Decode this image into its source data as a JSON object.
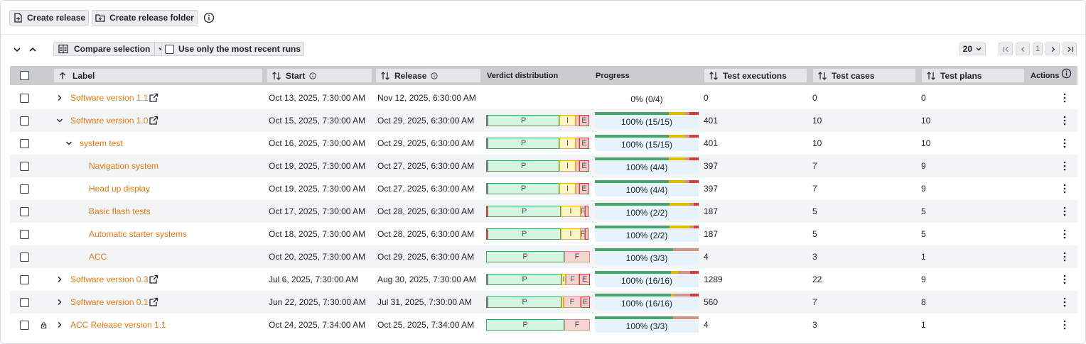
{
  "toolbar": {
    "create_release": "Create release",
    "create_release_folder": "Create release folder"
  },
  "toolbar2": {
    "compare_selection": "Compare selection",
    "most_recent_runs": "Use only the most recent runs",
    "page_size": "20",
    "current_page": "1"
  },
  "columns": {
    "label": "Label",
    "start": "Start",
    "release": "Release",
    "verdict": "Verdict distribution",
    "progress": "Progress",
    "test_executions": "Test executions",
    "test_cases": "Test cases",
    "test_plans": "Test plans",
    "actions": "Actions"
  },
  "colors": {
    "label_link": "#e07b1a",
    "passed": "#49a56d",
    "inconclusive": "#e8b800",
    "failed": "#d88f86",
    "error": "#d43a36",
    "header_bg": "#c9cdd0"
  },
  "rows": [
    {
      "label": "Software version 1.1",
      "indent": 0,
      "expander": "right",
      "external": true,
      "lock": false,
      "start": "Oct 13, 2025, 7:30:00 AM",
      "release": "Nov 12, 2025, 6:30:00 AM",
      "verdict": [],
      "progress": "0% (0/4)",
      "progress_bar": [],
      "test_executions": "0",
      "test_cases": "0",
      "test_plans": "0"
    },
    {
      "label": "Software version 1.0",
      "indent": 0,
      "expander": "down",
      "external": true,
      "lock": false,
      "start": "Oct 15, 2025, 7:30:00 AM",
      "release": "Oct 29, 2025, 6:30:00 AM",
      "verdict": [
        {
          "k": "X",
          "w": 2,
          "t": ""
        },
        {
          "k": "P",
          "w": 101,
          "t": "P"
        },
        {
          "k": "I",
          "w": 23,
          "t": "I"
        },
        {
          "k": "F",
          "w": 5,
          "t": ""
        },
        {
          "k": "E",
          "w": 14,
          "t": "E"
        }
      ],
      "progress": "100% (15/15)",
      "progress_bar": [
        {
          "c": "#49a56d",
          "w": 0.71
        },
        {
          "c": "#e8b800",
          "w": 0.16
        },
        {
          "c": "#d88f86",
          "w": 0.04
        },
        {
          "c": "#d43a36",
          "w": 0.09
        }
      ],
      "test_executions": "401",
      "test_cases": "10",
      "test_plans": "10"
    },
    {
      "label": "system test",
      "indent": 1,
      "expander": "down",
      "external": false,
      "lock": false,
      "start": "Oct 16, 2025, 7:30:00 AM",
      "release": "Oct 29, 2025, 6:30:00 AM",
      "verdict": [
        {
          "k": "X",
          "w": 2,
          "t": ""
        },
        {
          "k": "P",
          "w": 101,
          "t": "P"
        },
        {
          "k": "I",
          "w": 23,
          "t": "I"
        },
        {
          "k": "F",
          "w": 5,
          "t": ""
        },
        {
          "k": "E",
          "w": 14,
          "t": "E"
        }
      ],
      "progress": "100% (15/15)",
      "progress_bar": [
        {
          "c": "#49a56d",
          "w": 0.71
        },
        {
          "c": "#e8b800",
          "w": 0.16
        },
        {
          "c": "#d88f86",
          "w": 0.04
        },
        {
          "c": "#d43a36",
          "w": 0.09
        }
      ],
      "test_executions": "401",
      "test_cases": "10",
      "test_plans": "10"
    },
    {
      "label": "Navigation system",
      "indent": 2,
      "expander": "",
      "external": false,
      "lock": false,
      "start": "Oct 19, 2025, 7:30:00 AM",
      "release": "Oct 27, 2025, 6:30:00 AM",
      "verdict": [
        {
          "k": "X",
          "w": 2,
          "t": ""
        },
        {
          "k": "P",
          "w": 101,
          "t": "P"
        },
        {
          "k": "I",
          "w": 23,
          "t": "I"
        },
        {
          "k": "F",
          "w": 5,
          "t": ""
        },
        {
          "k": "E",
          "w": 14,
          "t": "E"
        }
      ],
      "progress": "100% (4/4)",
      "progress_bar": [
        {
          "c": "#49a56d",
          "w": 0.71
        },
        {
          "c": "#e8b800",
          "w": 0.16
        },
        {
          "c": "#d88f86",
          "w": 0.04
        },
        {
          "c": "#d43a36",
          "w": 0.09
        }
      ],
      "test_executions": "397",
      "test_cases": "7",
      "test_plans": "9"
    },
    {
      "label": "Head up display",
      "indent": 2,
      "expander": "",
      "external": false,
      "lock": false,
      "start": "Oct 19, 2025, 7:30:00 AM",
      "release": "Oct 27, 2025, 6:30:00 AM",
      "verdict": [
        {
          "k": "X",
          "w": 2,
          "t": ""
        },
        {
          "k": "P",
          "w": 101,
          "t": "P"
        },
        {
          "k": "I",
          "w": 23,
          "t": "I"
        },
        {
          "k": "F",
          "w": 5,
          "t": ""
        },
        {
          "k": "E",
          "w": 14,
          "t": "E"
        }
      ],
      "progress": "100% (4/4)",
      "progress_bar": [
        {
          "c": "#49a56d",
          "w": 0.71
        },
        {
          "c": "#e8b800",
          "w": 0.16
        },
        {
          "c": "#d88f86",
          "w": 0.04
        },
        {
          "c": "#d43a36",
          "w": 0.09
        }
      ],
      "test_executions": "397",
      "test_cases": "7",
      "test_plans": "9"
    },
    {
      "label": "Basic flash tests",
      "indent": 2,
      "expander": "",
      "external": false,
      "lock": false,
      "start": "Oct 17, 2025, 7:30:00 AM",
      "release": "Oct 28, 2025, 6:30:00 AM",
      "verdict": [
        {
          "k": "E",
          "w": 2,
          "t": ""
        },
        {
          "k": "P",
          "w": 103,
          "t": "P"
        },
        {
          "k": "I",
          "w": 28,
          "t": "I"
        },
        {
          "k": "F",
          "w": 6,
          "t": "F"
        },
        {
          "k": "E",
          "w": 5,
          "t": ""
        }
      ],
      "progress": "100% (2/2)",
      "progress_bar": [
        {
          "c": "#49a56d",
          "w": 0.72
        },
        {
          "c": "#e8b800",
          "w": 0.19
        },
        {
          "c": "#d88f86",
          "w": 0.04
        },
        {
          "c": "#d43a36",
          "w": 0.05
        }
      ],
      "test_executions": "187",
      "test_cases": "5",
      "test_plans": "5"
    },
    {
      "label": "Automatic starter systems",
      "indent": 2,
      "expander": "",
      "external": false,
      "lock": false,
      "start": "Oct 18, 2025, 7:30:00 AM",
      "release": "Oct 28, 2025, 6:30:00 AM",
      "verdict": [
        {
          "k": "E",
          "w": 2,
          "t": ""
        },
        {
          "k": "P",
          "w": 103,
          "t": "P"
        },
        {
          "k": "I",
          "w": 28,
          "t": "I"
        },
        {
          "k": "F",
          "w": 6,
          "t": "F"
        },
        {
          "k": "E",
          "w": 5,
          "t": ""
        }
      ],
      "progress": "100% (2/2)",
      "progress_bar": [
        {
          "c": "#49a56d",
          "w": 0.72
        },
        {
          "c": "#e8b800",
          "w": 0.19
        },
        {
          "c": "#d88f86",
          "w": 0.04
        },
        {
          "c": "#d43a36",
          "w": 0.05
        }
      ],
      "test_executions": "187",
      "test_cases": "5",
      "test_plans": "5"
    },
    {
      "label": "ACC",
      "indent": 2,
      "expander": "",
      "external": false,
      "lock": false,
      "start": "Oct 20, 2025, 7:30:00 AM",
      "release": "Oct 29, 2025, 6:30:00 AM",
      "verdict": [
        {
          "k": "P",
          "w": 110,
          "t": "P"
        },
        {
          "k": "F",
          "w": 36,
          "t": "F"
        }
      ],
      "progress": "100% (3/3)",
      "progress_bar": [
        {
          "c": "#49a56d",
          "w": 0.75
        },
        {
          "c": "#d88f86",
          "w": 0.25
        }
      ],
      "test_executions": "4",
      "test_cases": "3",
      "test_plans": "1"
    },
    {
      "label": "Software version 0.3",
      "indent": 0,
      "expander": "right",
      "external": true,
      "lock": false,
      "start": "Jul 6, 2025, 7:30:00 AM",
      "release": "Aug 30, 2025, 7:30:00 AM",
      "verdict": [
        {
          "k": "X",
          "w": 2,
          "t": ""
        },
        {
          "k": "P",
          "w": 104,
          "t": "P"
        },
        {
          "k": "I",
          "w": 6,
          "t": "I"
        },
        {
          "k": "F",
          "w": 19,
          "t": "F"
        },
        {
          "k": "E",
          "w": 15,
          "t": "E"
        }
      ],
      "progress": "100% (16/16)",
      "progress_bar": [
        {
          "c": "#49a56d",
          "w": 0.73
        },
        {
          "c": "#e8b800",
          "w": 0.07
        },
        {
          "c": "#d88f86",
          "w": 0.12
        },
        {
          "c": "#d43a36",
          "w": 0.08
        }
      ],
      "test_executions": "1289",
      "test_cases": "22",
      "test_plans": "9"
    },
    {
      "label": "Software version 0.1",
      "indent": 0,
      "expander": "right",
      "external": true,
      "lock": false,
      "start": "Jun 22, 2025, 7:30:00 AM",
      "release": "Jul 31, 2025, 7:30:00 AM",
      "verdict": [
        {
          "k": "X",
          "w": 2,
          "t": ""
        },
        {
          "k": "P",
          "w": 104,
          "t": "P"
        },
        {
          "k": "I",
          "w": 3,
          "t": ""
        },
        {
          "k": "F",
          "w": 24,
          "t": "F"
        },
        {
          "k": "E",
          "w": 13,
          "t": "E"
        }
      ],
      "progress": "100% (16/16)",
      "progress_bar": [
        {
          "c": "#49a56d",
          "w": 0.73
        },
        {
          "c": "#e8b800",
          "w": 0.03
        },
        {
          "c": "#d88f86",
          "w": 0.16
        },
        {
          "c": "#d43a36",
          "w": 0.08
        }
      ],
      "test_executions": "560",
      "test_cases": "7",
      "test_plans": "8"
    },
    {
      "label": "ACC Release version 1.1",
      "indent": 0,
      "expander": "right",
      "external": false,
      "lock": true,
      "start": "Oct 24, 2025, 7:34:00 AM",
      "release": "Oct 25, 2025, 7:34:00 AM",
      "verdict": [
        {
          "k": "P",
          "w": 110,
          "t": "P"
        },
        {
          "k": "F",
          "w": 36,
          "t": "F"
        }
      ],
      "progress": "100% (3/3)",
      "progress_bar": [
        {
          "c": "#49a56d",
          "w": 0.75
        },
        {
          "c": "#d88f86",
          "w": 0.25
        }
      ],
      "test_executions": "4",
      "test_cases": "3",
      "test_plans": "1"
    }
  ]
}
